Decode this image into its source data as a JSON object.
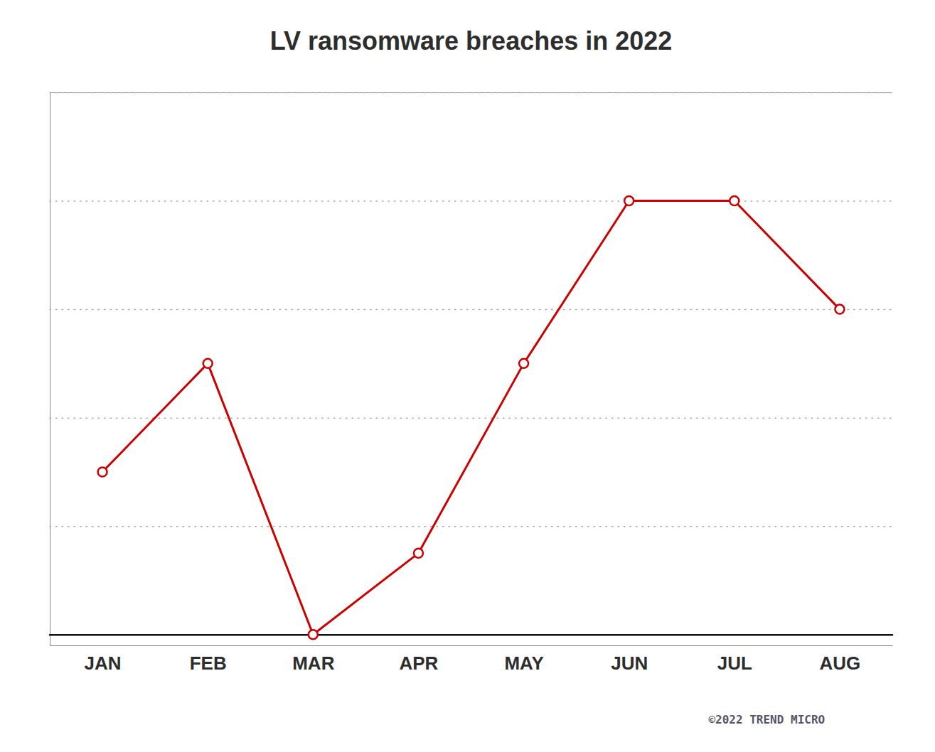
{
  "chart_data": {
    "type": "line",
    "title": "LV ransomware breaches in 2022",
    "categories": [
      "JAN",
      "FEB",
      "MAR",
      "APR",
      "MAY",
      "JUN",
      "JUL",
      "AUG"
    ],
    "values": [
      3,
      5,
      0,
      1.5,
      5,
      8,
      8,
      6
    ],
    "color": "#cc0000",
    "marker": "circle",
    "ylim": [
      -0.2,
      10
    ],
    "yticks": [
      0,
      2,
      4,
      6,
      8,
      10
    ],
    "grid": true,
    "tick_labels": "x",
    "annotations": [
      "©2022 TREND MICRO"
    ]
  }
}
